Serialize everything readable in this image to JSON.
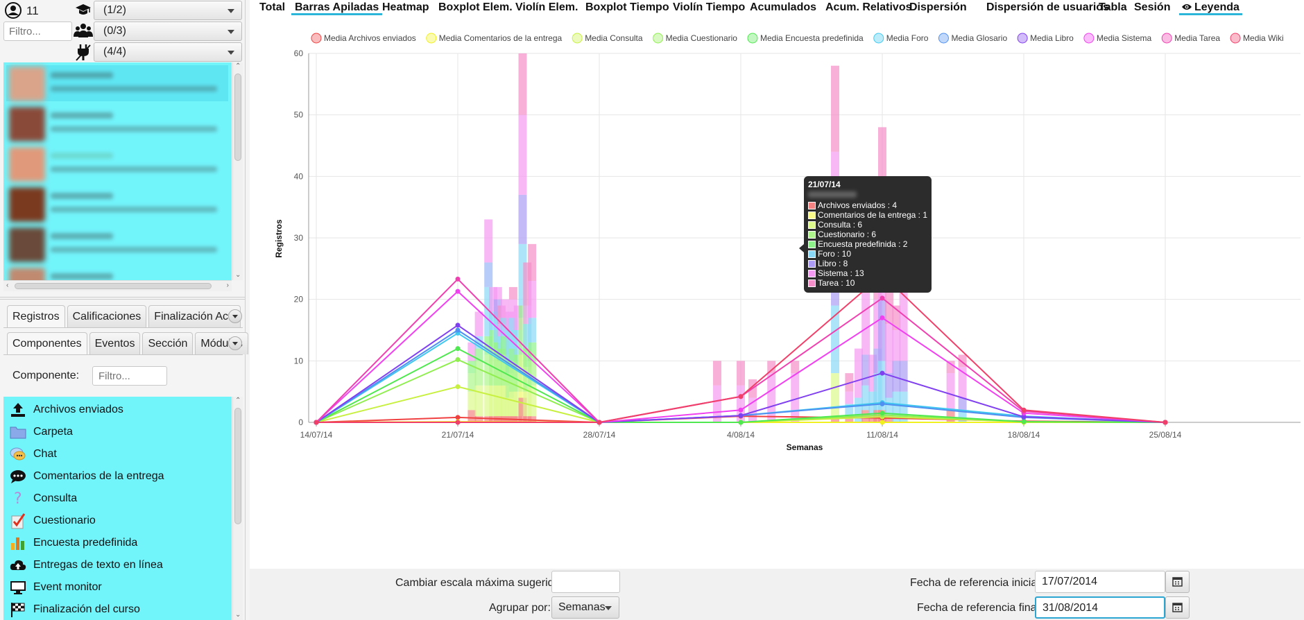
{
  "top_controls": {
    "user_count": "11",
    "filter_placeholder": "Filtro...",
    "role_combo": "(1/2)",
    "group_combo": "(0/3)",
    "activity_combo": "(4/4)"
  },
  "tabs_row1": [
    "Registros",
    "Calificaciones",
    "Finalización Activi"
  ],
  "tabs_row2": [
    "Componentes",
    "Eventos",
    "Sección",
    "Módulos"
  ],
  "component_filter": {
    "label": "Componente:",
    "placeholder": "Filtro..."
  },
  "components": [
    {
      "label": "Archivos enviados",
      "icon": "upload-icon"
    },
    {
      "label": "Carpeta",
      "icon": "folder-icon"
    },
    {
      "label": "Chat",
      "icon": "chat-icon"
    },
    {
      "label": "Comentarios de la entrega",
      "icon": "comment-icon"
    },
    {
      "label": "Consulta",
      "icon": "question-icon"
    },
    {
      "label": "Cuestionario",
      "icon": "quiz-check-icon"
    },
    {
      "label": "Encuesta predefinida",
      "icon": "bar-chart-icon"
    },
    {
      "label": "Entregas de texto en línea",
      "icon": "cloud-upload-icon"
    },
    {
      "label": "Event monitor",
      "icon": "monitor-icon"
    },
    {
      "label": "Finalización del curso",
      "icon": "flag-icon"
    }
  ],
  "toolbar": {
    "items": [
      "Total",
      "Barras Apiladas",
      "Heatmap",
      "Boxplot Elem.",
      "Violín Elem.",
      "Boxplot Tiempo",
      "Violín Tiempo",
      "Acumulados",
      "Acum. Relativos",
      "Dispersión",
      "Dispersión de usuarios",
      "Tabla",
      "Sesión"
    ],
    "legend_toggle": "Leyenda",
    "selected": "Barras Apiladas"
  },
  "bottom": {
    "max_scale_label": "Cambiar escala máxima sugerida:",
    "max_scale_value": "",
    "group_by_label": "Agrupar por:",
    "group_by_value": "Semanas",
    "start_date_label": "Fecha de referencia inicial:",
    "start_date_value": "17/07/2014",
    "end_date_label": "Fecha de referencia final:",
    "end_date_value": "31/08/2014"
  },
  "tooltip": {
    "title": "21/07/14",
    "rows": [
      {
        "label": "Archivos enviados : 4",
        "color": "#f48484"
      },
      {
        "label": "Comentarios de la entrega : 1",
        "color": "#fafa8a"
      },
      {
        "label": "Consulta : 6",
        "color": "#dcfa8c"
      },
      {
        "label": "Cuestionario : 6",
        "color": "#aef58c"
      },
      {
        "label": "Encuesta predefinida : 2",
        "color": "#8ef28a"
      },
      {
        "label": "Foro : 10",
        "color": "#8ad8f7"
      },
      {
        "label": "Libro : 8",
        "color": "#ad9cf5"
      },
      {
        "label": "Sistema : 13",
        "color": "#f59af2"
      },
      {
        "label": "Tarea : 10",
        "color": "#f58fc9"
      }
    ]
  },
  "chart_data": {
    "type": "bar",
    "xlabel": "Semanas",
    "ylabel": "Registros",
    "ylim": [
      0,
      60
    ],
    "yticks": [
      0,
      10,
      20,
      30,
      40,
      50,
      60
    ],
    "x_ticks": [
      "14/07/14",
      "21/07/14",
      "28/07/14",
      "4/08/14",
      "11/08/14",
      "18/08/14",
      "25/08/14"
    ],
    "grid": true,
    "legend_position": "top",
    "stack_colors": {
      "Archivos enviados": "#f48484",
      "Comentarios de la entrega": "#fafa8a",
      "Consulta": "#dcfa8c",
      "Cuestionario": "#aef58c",
      "Encuesta predefinida": "#8ef28a",
      "Foro": "#8ad8f7",
      "Glosario": "#9ab7f7",
      "Libro": "#ad9cf5",
      "Sistema": "#f59af2",
      "Tarea": "#f58fc9",
      "Wiki": "#f78a9c"
    },
    "stacked_bars": [
      {
        "x": 20.6,
        "stacks": {
          "Archivos enviados": 2,
          "Consulta": 3,
          "Cuestionario": 3,
          "Encuesta predefinida": 2,
          "Sistema": 3
        }
      },
      {
        "x": 20.9,
        "stacks": {
          "Archivos enviados": 1,
          "Consulta": 5,
          "Cuestionario": 4,
          "Encuesta predefinida": 2,
          "Foro": 2,
          "Sistema": 4
        }
      },
      {
        "x": 21.3,
        "stacks": {
          "Archivos enviados": 1,
          "Consulta": 5,
          "Cuestionario": 5,
          "Encuesta predefinida": 3,
          "Foro": 8,
          "Glosario": 4,
          "Sistema": 7
        }
      },
      {
        "x": 21.5,
        "stacks": {
          "Archivos enviados": 1,
          "Consulta": 5,
          "Cuestionario": 6,
          "Encuesta predefinida": 3,
          "Foro": 3,
          "Sistema": 4
        }
      },
      {
        "x": 21.7,
        "stacks": {
          "Archivos enviados": 1,
          "Consulta": 5,
          "Cuestionario": 5,
          "Encuesta predefinida": 2,
          "Foro": 4,
          "Libro": 3,
          "Sistema": 2
        }
      },
      {
        "x": 21.85,
        "stacks": {
          "Archivos enviados": 1,
          "Consulta": 5,
          "Cuestionario": 4,
          "Encuesta predefinida": 2,
          "Foro": 2,
          "Sistema": 2,
          "Tarea": 3
        }
      },
      {
        "x": 22.0,
        "stacks": {
          "Archivos enviados": 1,
          "Consulta": 5,
          "Cuestionario": 5,
          "Encuesta predefinida": 3,
          "Foro": 3,
          "Sistema": 3
        }
      },
      {
        "x": 22.2,
        "stacks": {
          "Archivos enviados": 1,
          "Consulta": 3,
          "Cuestionario": 4,
          "Encuesta predefinida": 2,
          "Foro": 5,
          "Sistema": 3
        }
      },
      {
        "x": 22.35,
        "stacks": {
          "Archivos enviados": 1,
          "Consulta": 4,
          "Cuestionario": 5,
          "Encuesta predefinida": 2,
          "Foro": 5,
          "Sistema": 3,
          "Tarea": 2
        }
      },
      {
        "x": 22.55,
        "stacks": {
          "Archivos enviados": 1,
          "Consulta": 4,
          "Cuestionario": 4,
          "Encuesta predefinida": 2,
          "Foro": 4,
          "Sistema": 4
        }
      },
      {
        "x": 22.75,
        "stacks": {
          "Archivos enviados": 4,
          "Comentarios de la entrega": 1,
          "Consulta": 6,
          "Cuestionario": 6,
          "Encuesta predefinida": 2,
          "Foro": 10,
          "Libro": 8,
          "Sistema": 13,
          "Tarea": 10
        }
      },
      {
        "x": 22.95,
        "stacks": {
          "Archivos enviados": 1,
          "Consulta": 4,
          "Cuestionario": 4,
          "Encuesta predefinida": 3,
          "Foro": 4,
          "Sistema": 3,
          "Tarea": 7
        }
      },
      {
        "x": 23.15,
        "stacks": {
          "Archivos enviados": 1,
          "Consulta": 5,
          "Cuestionario": 4,
          "Encuesta predefinida": 3,
          "Foro": 4,
          "Sistema": 6,
          "Tarea": 6
        }
      },
      {
        "x": 31.0,
        "stacks": {
          "Sistema": 6,
          "Tarea": 4
        }
      },
      {
        "x": 32.0,
        "stacks": {
          "Sistema": 6,
          "Tarea": 4
        }
      },
      {
        "x": 32.5,
        "stacks": {
          "Sistema": 4,
          "Tarea": 3
        }
      },
      {
        "x": 33.3,
        "stacks": {
          "Sistema": 8,
          "Tarea": 2
        }
      },
      {
        "x": 34.3,
        "stacks": {
          "Sistema": 8,
          "Tarea": 2
        }
      },
      {
        "x": 36.0,
        "stacks": {
          "Archivos enviados": 1,
          "Consulta": 7,
          "Foro": 11,
          "Libro": 8,
          "Sistema": 17,
          "Tarea": 14
        }
      },
      {
        "x": 36.6,
        "stacks": {
          "Archivos enviados": 1,
          "Foro": 2,
          "Sistema": 2,
          "Tarea": 3
        }
      },
      {
        "x": 37.0,
        "stacks": {
          "Foro": 4,
          "Sistema": 8
        }
      },
      {
        "x": 37.3,
        "stacks": {
          "Archivos enviados": 2,
          "Foro": 4,
          "Libro": 5,
          "Sistema": 10,
          "Tarea": 5
        }
      },
      {
        "x": 37.6,
        "stacks": {
          "Archivos enviados": 1,
          "Foro": 4,
          "Sistema": 6
        }
      },
      {
        "x": 37.8,
        "stacks": {
          "Archivos enviados": 2,
          "Foro": 6,
          "Libro": 4,
          "Sistema": 8,
          "Tarea": 7
        }
      },
      {
        "x": 38.0,
        "stacks": {
          "Archivos enviados": 2,
          "Foro": 8,
          "Libro": 10,
          "Sistema": 19,
          "Tarea": 9
        }
      },
      {
        "x": 38.3,
        "stacks": {
          "Archivos enviados": 1,
          "Foro": 3,
          "Libro": 4,
          "Sistema": 8,
          "Tarea": 9
        }
      },
      {
        "x": 38.6,
        "stacks": {
          "Foro": 5,
          "Libro": 5,
          "Sistema": 5,
          "Tarea": 4
        }
      },
      {
        "x": 38.9,
        "stacks": {
          "Foro": 5,
          "Libro": 5,
          "Sistema": 14,
          "Tarea": 8
        }
      },
      {
        "x": 40.9,
        "stacks": {
          "Archivos enviados": 2,
          "Sistema": 6,
          "Tarea": 2
        }
      },
      {
        "x": 41.4,
        "stacks": {
          "Foro": 2,
          "Libro": 2,
          "Sistema": 5,
          "Tarea": 2
        }
      }
    ],
    "series": [
      {
        "name": "Media Archivos enviados",
        "color": "#f04040",
        "values": [
          0,
          0.8,
          0,
          1.0,
          0.7,
          0.2,
          0
        ]
      },
      {
        "name": "Media Comentarios de la entrega",
        "color": "#f0f020",
        "values": [
          0,
          0.1,
          0,
          0,
          0,
          0,
          0
        ]
      },
      {
        "name": "Media Consulta",
        "color": "#c8f040",
        "values": [
          0,
          5.8,
          0,
          0,
          0.9,
          0.1,
          0
        ]
      },
      {
        "name": "Media Cuestionario",
        "color": "#90ee50",
        "values": [
          0,
          10.2,
          0,
          0,
          1.2,
          0.1,
          0
        ]
      },
      {
        "name": "Media Encuesta predefinida",
        "color": "#50e850",
        "values": [
          0,
          12.0,
          0,
          0,
          1.5,
          0.1,
          0
        ]
      },
      {
        "name": "Media Foro",
        "color": "#40c8f0",
        "values": [
          0,
          14.5,
          0,
          1.1,
          3.2,
          1.0,
          0
        ]
      },
      {
        "name": "Media Glosario",
        "color": "#5090f0",
        "values": [
          0,
          15.0,
          0,
          1.1,
          3.0,
          0.8,
          0
        ]
      },
      {
        "name": "Media Libro",
        "color": "#8040f0",
        "values": [
          0,
          15.8,
          0,
          1.1,
          8.0,
          0.9,
          0
        ]
      },
      {
        "name": "Media Sistema",
        "color": "#f040f0",
        "values": [
          0,
          21.3,
          0,
          2.0,
          17.0,
          1.5,
          0
        ]
      },
      {
        "name": "Media Tarea",
        "color": "#f040b0",
        "values": [
          0,
          23.3,
          0,
          4.2,
          20.2,
          1.8,
          0
        ]
      },
      {
        "name": "Media Wiki",
        "color": "#f0406a",
        "values": [
          0,
          0,
          0,
          4.2,
          24.0,
          2.0,
          0
        ]
      }
    ]
  }
}
